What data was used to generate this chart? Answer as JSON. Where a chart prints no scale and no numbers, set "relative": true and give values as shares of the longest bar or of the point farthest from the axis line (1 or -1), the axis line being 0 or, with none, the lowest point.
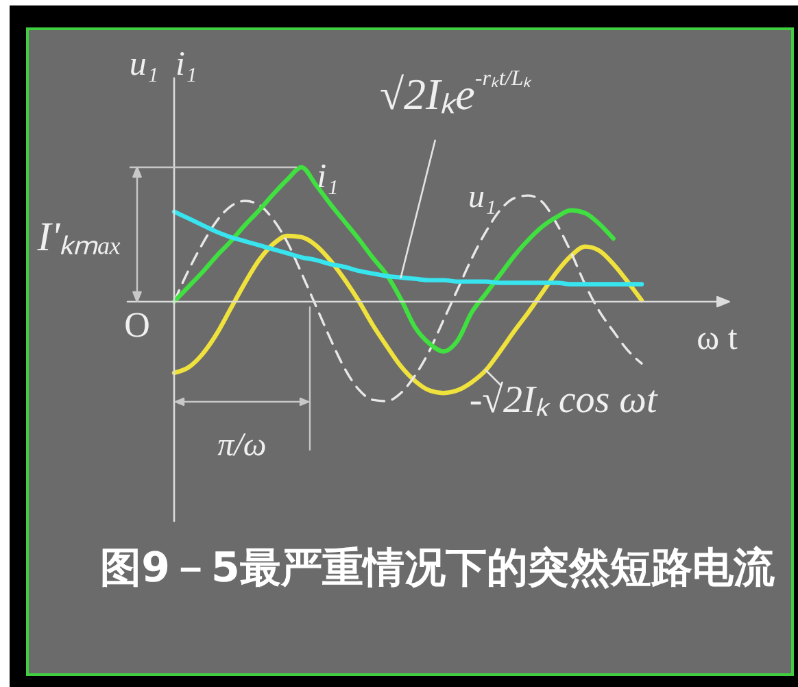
{
  "chart_data": {
    "type": "line",
    "title": "图9－5最严重情况下的突然短路电流",
    "xlabel": "ω t",
    "ylabel": "u₁  i₁",
    "relative": true,
    "categories": [
      null,
      null,
      null,
      null,
      null,
      null,
      null,
      null,
      null,
      null,
      null,
      null,
      null,
      null,
      null,
      null,
      null,
      null,
      null,
      null,
      null,
      null,
      null,
      null,
      null,
      null,
      null,
      null,
      null,
      null,
      null,
      null,
      null,
      null
    ],
    "series": [
      {
        "name": "-√2Iₖ cos ωt",
        "color": "#f0e23c",
        "values": [
          -0.53,
          -0.49,
          -0.39,
          -0.24,
          -0.05,
          0.14,
          0.31,
          0.43,
          0.49,
          0.48,
          0.42,
          0.31,
          0.17,
          0.01,
          -0.17,
          -0.33,
          -0.48,
          -0.59,
          -0.66,
          -0.68,
          -0.66,
          -0.6,
          -0.51,
          -0.37,
          -0.22,
          -0.08,
          0.07,
          0.22,
          0.34,
          0.41,
          0.38,
          0.28,
          0.15,
          0.01
        ]
      },
      {
        "name": "u₁",
        "color": "#e8e8e8",
        "line_style": "dashed",
        "values": [
          0,
          0.23,
          0.43,
          0.6,
          0.71,
          0.75,
          0.72,
          0.61,
          0.44,
          0.21,
          -0.03,
          -0.27,
          -0.49,
          -0.65,
          -0.73,
          -0.74,
          -0.68,
          -0.55,
          -0.37,
          -0.14,
          0.09,
          0.32,
          0.52,
          0.68,
          0.77,
          0.79,
          0.74,
          0.58,
          0.37,
          0.13,
          -0.07,
          -0.22,
          -0.36,
          -0.46
        ]
      },
      {
        "name": "i₁",
        "color": "#3fe03f",
        "values": [
          0,
          0.11,
          0.22,
          0.34,
          0.45,
          0.57,
          0.68,
          0.8,
          0.91,
          1,
          0.87,
          0.73,
          0.6,
          0.47,
          0.33,
          0.2,
          0.02,
          -0.19,
          -0.31,
          -0.37,
          -0.29,
          -0.08,
          0.06,
          0.2,
          0.34,
          0.46,
          0.56,
          0.63,
          0.68,
          0.66,
          0.58,
          0.47,
          null,
          null
        ]
      },
      {
        "name": "√2Iₖe$^{-rₖt/Lₖ}$",
        "color": "#38e4ee",
        "values": [
          0.67,
          0.62,
          0.57,
          0.52,
          0.48,
          0.45,
          0.42,
          0.39,
          0.36,
          0.33,
          0.31,
          0.28,
          0.26,
          0.23,
          0.21,
          0.19,
          0.18,
          0.17,
          0.16,
          0.16,
          0.15,
          0.15,
          0.15,
          0.14,
          0.14,
          0.14,
          0.14,
          0.14,
          0.13,
          0.13,
          0.13,
          0.13,
          0.13,
          0.13
        ]
      }
    ],
    "annotations": [
      "O",
      "I'ₖₘₐₓ",
      "π/ω"
    ]
  }
}
